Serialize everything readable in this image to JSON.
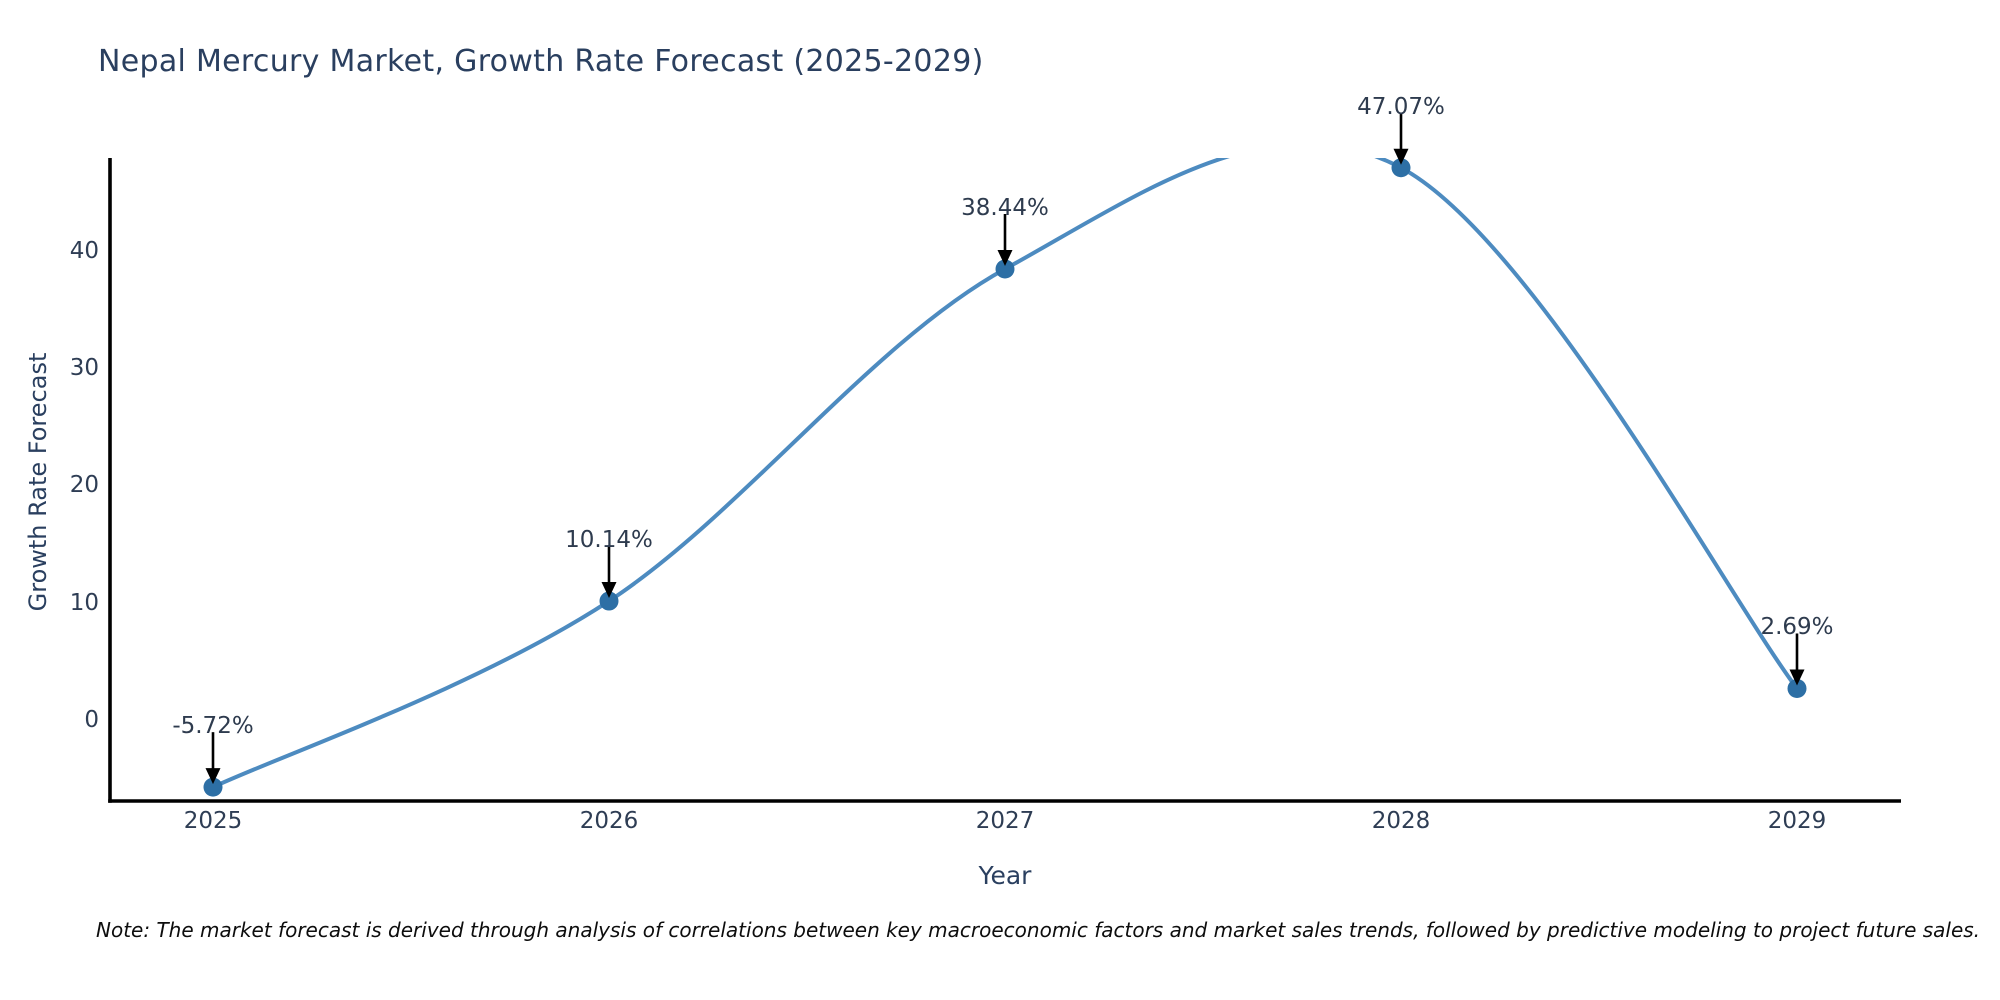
{
  "note": "Note: The market forecast is derived through analysis of correlations between key macroeconomic factors and market sales trends, followed by predictive modeling to project future sales.",
  "chart_data": {
    "type": "line",
    "line_shape": "spline",
    "title": "Nepal Mercury Market, Growth Rate Forecast (2025-2029)",
    "xlabel": "Year",
    "ylabel": "Growth Rate Forecast",
    "categories": [
      "2025",
      "2026",
      "2027",
      "2028",
      "2029"
    ],
    "values": [
      -5.72,
      10.14,
      38.44,
      47.07,
      2.69
    ],
    "point_labels": [
      "-5.72%",
      "10.14%",
      "38.44%",
      "47.07%",
      "2.69%"
    ],
    "y_ticks": [
      0,
      10,
      20,
      30,
      40
    ],
    "ylim": [
      -6.9,
      47.9
    ],
    "grid": false,
    "legend": "none",
    "colors": {
      "line": "#4d8bc0",
      "marker": "#2d6fa5",
      "axis": "#000000",
      "annotation_arrow": "#000000",
      "title_text": "#2a3f5f",
      "tick_text": "#2e3d54"
    }
  }
}
